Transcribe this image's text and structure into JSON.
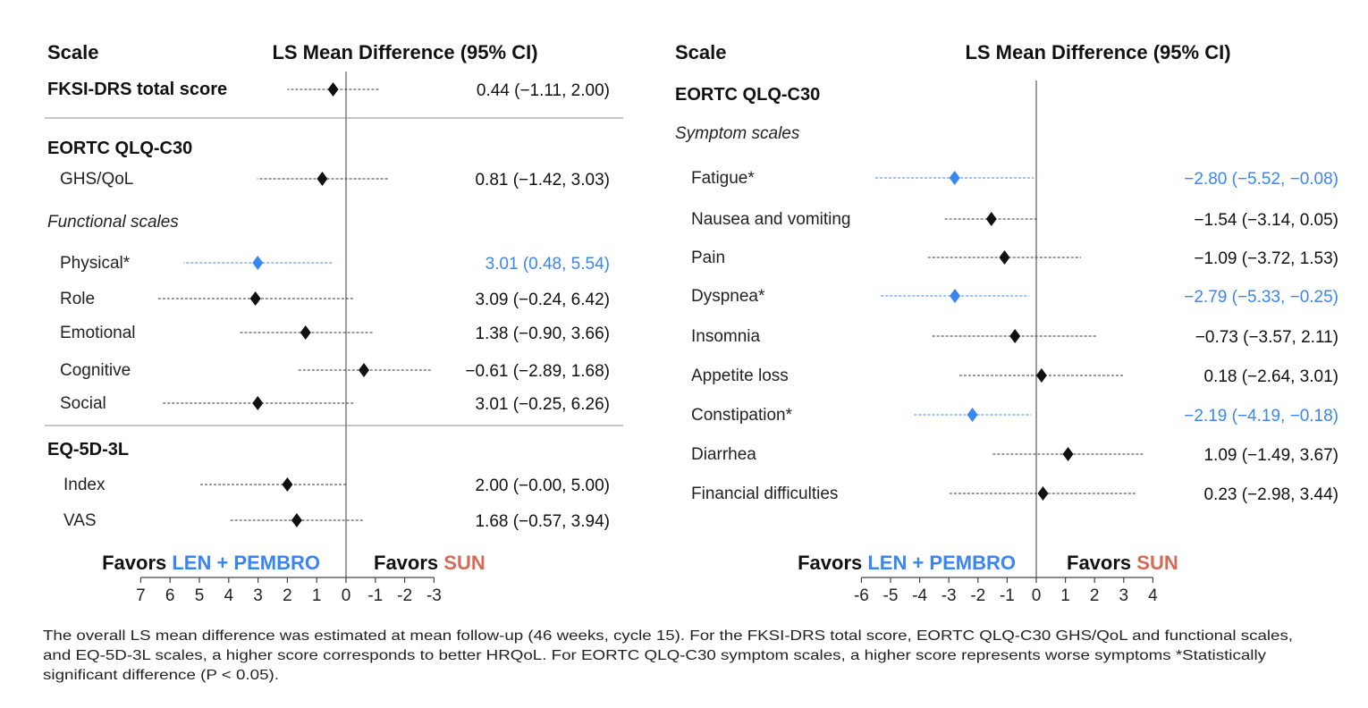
{
  "colors": {
    "significant": "#3a86f0",
    "default": "#111111",
    "len_pembro": "#3a86f0",
    "sun": "#d66a55"
  },
  "chart_data": [
    {
      "type": "forest",
      "headers": {
        "scale": "Scale",
        "estimate": "LS Mean Difference (95% CI)"
      },
      "xlim": [
        7,
        -3
      ],
      "reversed_axis": true,
      "ticks": [
        7,
        6,
        5,
        4,
        3,
        2,
        1,
        0,
        -1,
        -2,
        -3
      ],
      "tick_labels": [
        "7",
        "6",
        "5",
        "4",
        "3",
        "2",
        "1",
        "0",
        "-1",
        "-2",
        "-3"
      ],
      "favors_left": {
        "prefix": "Favors ",
        "group": "LEN + PEMBRO"
      },
      "favors_right": {
        "prefix": "Favors ",
        "group": "SUN"
      },
      "rows": [
        {
          "kind": "item-bold",
          "label": "FKSI-DRS total score",
          "est": 0.44,
          "lo": -1.11,
          "hi": 2.0,
          "text": "0.44 (−1.11, 2.00)",
          "sig": false
        },
        {
          "kind": "divider"
        },
        {
          "kind": "section",
          "label": "EORTC QLQ-C30"
        },
        {
          "kind": "item",
          "label": "GHS/QoL",
          "est": 0.81,
          "lo": -1.42,
          "hi": 3.03,
          "text": "0.81 (−1.42, 3.03)",
          "sig": false
        },
        {
          "kind": "subsection",
          "label": "Functional scales"
        },
        {
          "kind": "item",
          "label": "Physical*",
          "est": 3.01,
          "lo": 0.48,
          "hi": 5.54,
          "text": "3.01 (0.48, 5.54)",
          "sig": true
        },
        {
          "kind": "item",
          "label": "Role",
          "est": 3.09,
          "lo": -0.24,
          "hi": 6.42,
          "text": "3.09 (−0.24, 6.42)",
          "sig": false
        },
        {
          "kind": "item",
          "label": "Emotional",
          "est": 1.38,
          "lo": -0.9,
          "hi": 3.66,
          "text": "1.38 (−0.90, 3.66)",
          "sig": false
        },
        {
          "kind": "item",
          "label": "Cognitive",
          "est": -0.61,
          "lo": -2.89,
          "hi": 1.68,
          "text": "−0.61 (−2.89, 1.68)",
          "sig": false
        },
        {
          "kind": "item",
          "label": "Social",
          "est": 3.01,
          "lo": -0.25,
          "hi": 6.26,
          "text": "3.01 (−0.25, 6.26)",
          "sig": false
        },
        {
          "kind": "divider"
        },
        {
          "kind": "section",
          "label": "EQ-5D-3L"
        },
        {
          "kind": "item",
          "label": "Index",
          "est": 2.0,
          "lo": -0.0,
          "hi": 5.0,
          "text": "2.00 (−0.00, 5.00)",
          "sig": false
        },
        {
          "kind": "item",
          "label": "VAS",
          "est": 1.68,
          "lo": -0.57,
          "hi": 3.94,
          "text": "1.68 (−0.57, 3.94)",
          "sig": false
        }
      ]
    },
    {
      "type": "forest",
      "headers": {
        "scale": "Scale",
        "estimate": "LS Mean Difference (95% CI)"
      },
      "xlim": [
        -6,
        4
      ],
      "reversed_axis": false,
      "ticks": [
        -6,
        -5,
        -4,
        -3,
        -2,
        -1,
        0,
        1,
        2,
        3,
        4
      ],
      "tick_labels": [
        "-6",
        "-5",
        "-4",
        "-3",
        "-2",
        "-1",
        "0",
        "1",
        "2",
        "3",
        "4"
      ],
      "favors_left": {
        "prefix": "Favors ",
        "group": "LEN + PEMBRO"
      },
      "favors_right": {
        "prefix": "Favors ",
        "group": "SUN"
      },
      "rows": [
        {
          "kind": "section",
          "label": "EORTC QLQ-C30"
        },
        {
          "kind": "subsection",
          "label": "Symptom scales"
        },
        {
          "kind": "item",
          "label": "Fatigue*",
          "est": -2.8,
          "lo": -5.52,
          "hi": -0.08,
          "text": "−2.80 (−5.52, −0.08)",
          "sig": true
        },
        {
          "kind": "item",
          "label": "Nausea and vomiting",
          "est": -1.54,
          "lo": -3.14,
          "hi": 0.05,
          "text": "−1.54 (−3.14, 0.05)",
          "sig": false
        },
        {
          "kind": "item",
          "label": "Pain",
          "est": -1.09,
          "lo": -3.72,
          "hi": 1.53,
          "text": "−1.09 (−3.72, 1.53)",
          "sig": false
        },
        {
          "kind": "item",
          "label": "Dyspnea*",
          "est": -2.79,
          "lo": -5.33,
          "hi": -0.25,
          "text": "−2.79 (−5.33, −0.25)",
          "sig": true
        },
        {
          "kind": "item",
          "label": "Insomnia",
          "est": -0.73,
          "lo": -3.57,
          "hi": 2.11,
          "text": "−0.73 (−3.57, 2.11)",
          "sig": false
        },
        {
          "kind": "item",
          "label": "Appetite loss",
          "est": 0.18,
          "lo": -2.64,
          "hi": 3.01,
          "text": "0.18 (−2.64, 3.01)",
          "sig": false
        },
        {
          "kind": "item",
          "label": "Constipation*",
          "est": -2.19,
          "lo": -4.19,
          "hi": -0.18,
          "text": "−2.19 (−4.19, −0.18)",
          "sig": true
        },
        {
          "kind": "item",
          "label": "Diarrhea",
          "est": 1.09,
          "lo": -1.49,
          "hi": 3.67,
          "text": "1.09 (−1.49, 3.67)",
          "sig": false
        },
        {
          "kind": "item",
          "label": "Financial difficulties",
          "est": 0.23,
          "lo": -2.98,
          "hi": 3.44,
          "text": "0.23 (−2.98, 3.44)",
          "sig": false
        }
      ]
    }
  ],
  "footnote": [
    "The overall LS mean difference was estimated at mean follow-up (46 weeks, cycle 15). For the FKSI-DRS total score, EORTC QLQ-C30 GHS/QoL and functional scales,",
    "and EQ-5D-3L scales, a higher score corresponds to better HRQoL. For EORTC QLQ-C30 symptom scales, a higher score represents worse symptoms *Statistically",
    "significant difference (P < 0.05)."
  ]
}
